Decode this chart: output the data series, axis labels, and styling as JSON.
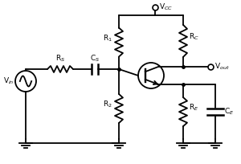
{
  "background_color": "#ffffff",
  "line_color": "#000000",
  "line_width": 1.3,
  "labels": {
    "Vin": "V$_{in}$",
    "Rs": "R$_S$",
    "Cs": "C$_S$",
    "R1": "R$_1$",
    "R2": "R$_2$",
    "Rc": "R$_C$",
    "Re": "R$_E$",
    "Ce": "C$_E$",
    "Vcc": "V$_{CC}$",
    "Vout": "V$_{out}$"
  },
  "figsize": [
    3.0,
    2.04
  ],
  "dpi": 100
}
